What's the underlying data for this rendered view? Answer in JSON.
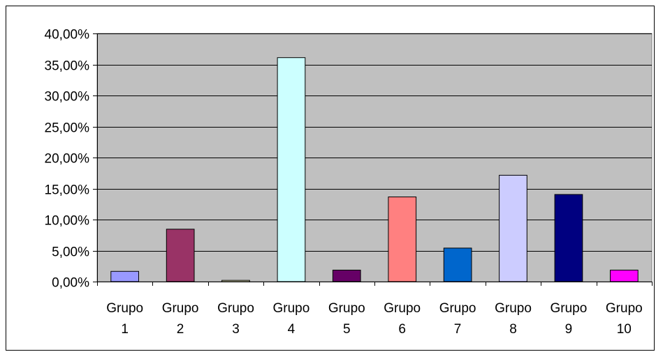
{
  "chart_data": {
    "type": "bar",
    "categories": [
      [
        "Grupo",
        "1"
      ],
      [
        "Grupo",
        "2"
      ],
      [
        "Grupo",
        "3"
      ],
      [
        "Grupo",
        "4"
      ],
      [
        "Grupo",
        "5"
      ],
      [
        "Grupo",
        "6"
      ],
      [
        "Grupo",
        "7"
      ],
      [
        "Grupo",
        "8"
      ],
      [
        "Grupo",
        "9"
      ],
      [
        "Grupo",
        "10"
      ]
    ],
    "values": [
      0.0165,
      0.0845,
      0.002,
      0.361,
      0.0185,
      0.1365,
      0.054,
      0.1715,
      0.1405,
      0.0185
    ],
    "bar_colors": [
      "#9999FF",
      "#993366",
      "#FFFFCC",
      "#CCFFFF",
      "#660066",
      "#FF8080",
      "#0066CC",
      "#CCCCFF",
      "#000080",
      "#FF00FF"
    ],
    "ylim": [
      0,
      0.4
    ],
    "yticks": [
      0,
      0.05,
      0.1,
      0.15,
      0.2,
      0.25,
      0.3,
      0.35,
      0.4
    ],
    "ytick_labels": [
      "0,00%",
      "5,00%",
      "10,00%",
      "15,00%",
      "20,00%",
      "25,00%",
      "30,00%",
      "35,00%",
      "40,00%"
    ],
    "title": "",
    "xlabel": "",
    "ylabel": "",
    "grid": true,
    "legend": "none",
    "plot_background": "#C0C0C0"
  }
}
